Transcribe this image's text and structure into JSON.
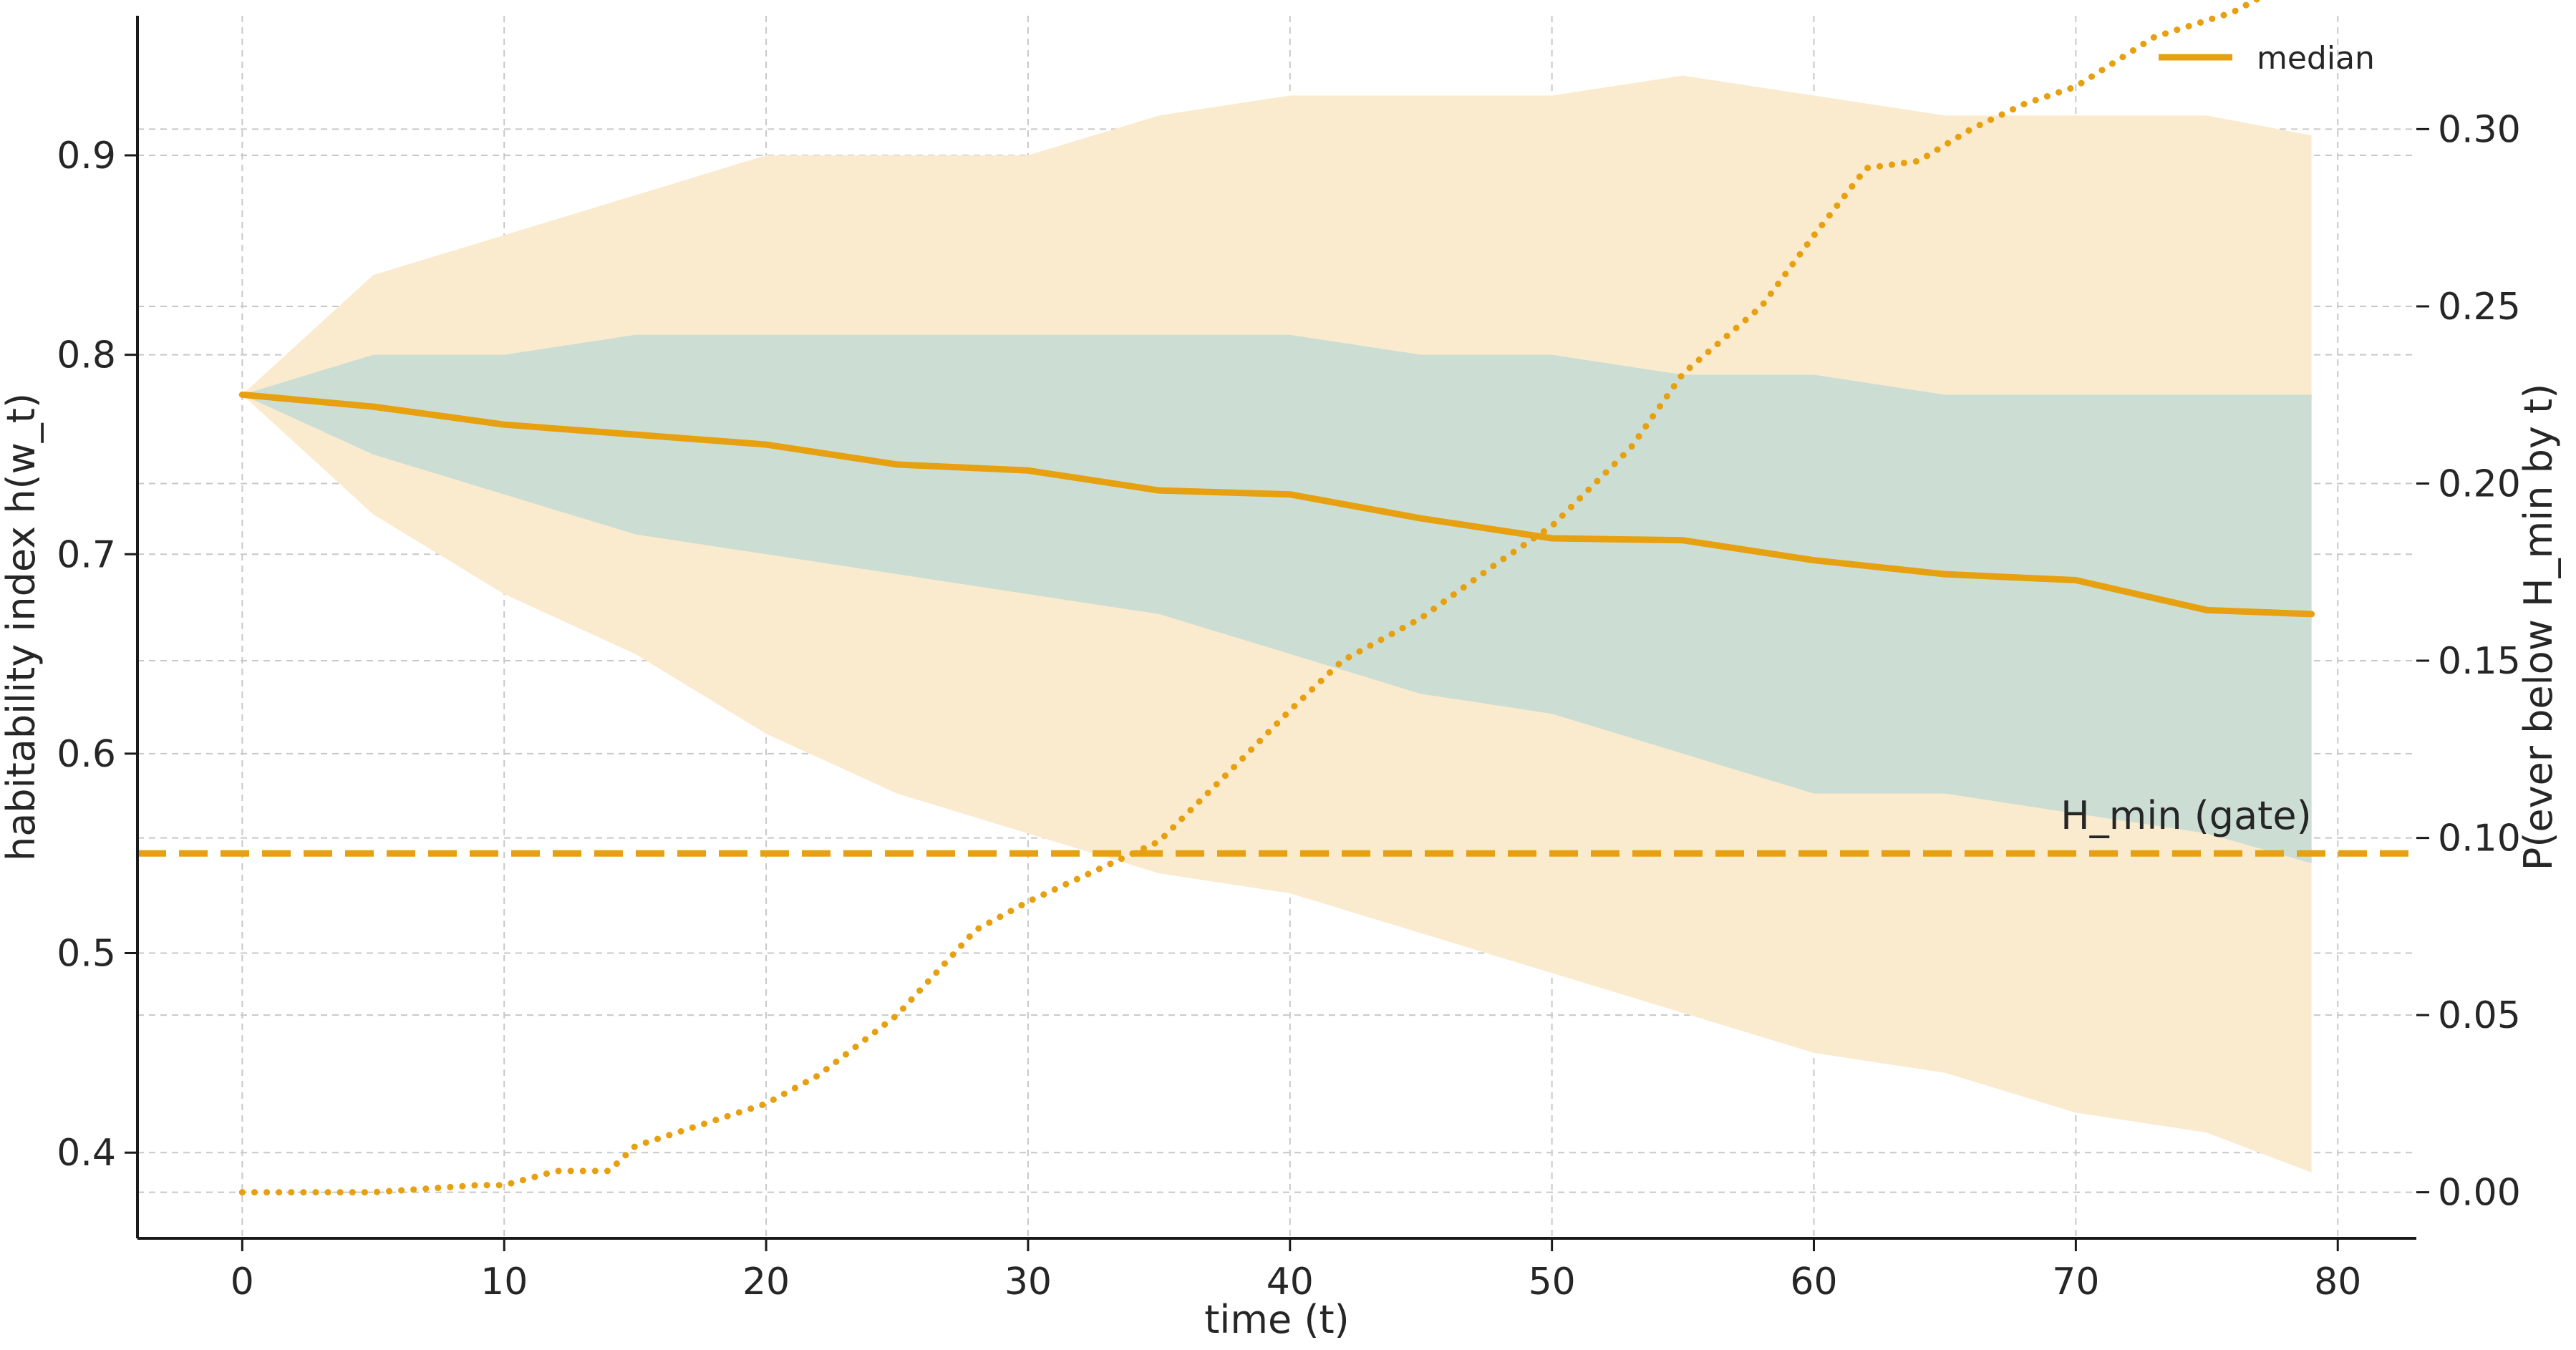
{
  "chart_data": {
    "type": "line",
    "title": "",
    "xlabel": "time (t)",
    "ylabel_left": "habitability index  h(w_t)",
    "ylabel_right": "P(ever below H_min by t)",
    "xlim": [
      -4,
      83
    ],
    "ylim_left": [
      0.357,
      0.97
    ],
    "ylim_right": [
      -0.013,
      0.332
    ],
    "x_ticks": [
      0,
      10,
      20,
      30,
      40,
      50,
      60,
      70,
      80
    ],
    "y_ticks_left": [
      0.4,
      0.5,
      0.6,
      0.7,
      0.8,
      0.9
    ],
    "y_ticks_right": [
      0.0,
      0.05,
      0.1,
      0.15,
      0.2,
      0.25,
      0.3
    ],
    "grid": true,
    "legend": {
      "location": "top-right",
      "entries": [
        "median"
      ]
    },
    "colors": {
      "median": "#E6A010",
      "outer_band": "#FAEBCF",
      "inner_band": "#CCDED4",
      "gate": "#E6A010",
      "grid": "#c8c8c8",
      "axis": "#1a1a1a"
    },
    "gate": {
      "label": "H_min (gate)",
      "value": 0.55
    },
    "x_band": [
      0,
      5,
      10,
      15,
      20,
      25,
      30,
      35,
      40,
      45,
      50,
      55,
      60,
      65,
      70,
      75,
      79
    ],
    "outer_upper": [
      0.78,
      0.84,
      0.86,
      0.88,
      0.9,
      0.9,
      0.9,
      0.92,
      0.93,
      0.93,
      0.93,
      0.94,
      0.93,
      0.92,
      0.92,
      0.92,
      0.91
    ],
    "outer_lower": [
      0.78,
      0.72,
      0.68,
      0.65,
      0.61,
      0.58,
      0.56,
      0.54,
      0.53,
      0.51,
      0.49,
      0.47,
      0.45,
      0.44,
      0.42,
      0.41,
      0.39
    ],
    "inner_upper": [
      0.78,
      0.8,
      0.8,
      0.81,
      0.81,
      0.81,
      0.81,
      0.81,
      0.81,
      0.8,
      0.8,
      0.79,
      0.79,
      0.78,
      0.78,
      0.78,
      0.78
    ],
    "inner_lower": [
      0.78,
      0.75,
      0.73,
      0.71,
      0.7,
      0.69,
      0.68,
      0.67,
      0.65,
      0.63,
      0.62,
      0.6,
      0.58,
      0.58,
      0.57,
      0.56,
      0.545
    ],
    "series": [
      {
        "name": "median",
        "axis": "left",
        "style": "solid",
        "x": [
          0,
          5,
          10,
          15,
          20,
          25,
          30,
          35,
          40,
          45,
          50,
          55,
          60,
          65,
          70,
          75,
          79
        ],
        "values": [
          0.78,
          0.774,
          0.765,
          0.76,
          0.755,
          0.745,
          0.742,
          0.732,
          0.73,
          0.718,
          0.708,
          0.707,
          0.697,
          0.69,
          0.687,
          0.672,
          0.67
        ]
      },
      {
        "name": "",
        "axis": "right",
        "style": "dotted",
        "x": [
          0,
          5,
          9,
          10,
          12,
          14,
          15,
          20,
          22,
          25,
          28,
          30,
          35,
          38,
          40,
          42,
          45,
          48,
          50,
          53,
          55,
          58,
          60,
          62,
          64,
          66,
          68,
          70,
          73,
          76,
          79
        ],
        "values": [
          0.0,
          0.0,
          0.002,
          0.002,
          0.006,
          0.006,
          0.013,
          0.025,
          0.033,
          0.05,
          0.074,
          0.082,
          0.099,
          0.121,
          0.136,
          0.15,
          0.162,
          0.178,
          0.188,
          0.21,
          0.231,
          0.25,
          0.27,
          0.289,
          0.291,
          0.3,
          0.307,
          0.312,
          0.326,
          0.333,
          0.345
        ]
      }
    ]
  }
}
